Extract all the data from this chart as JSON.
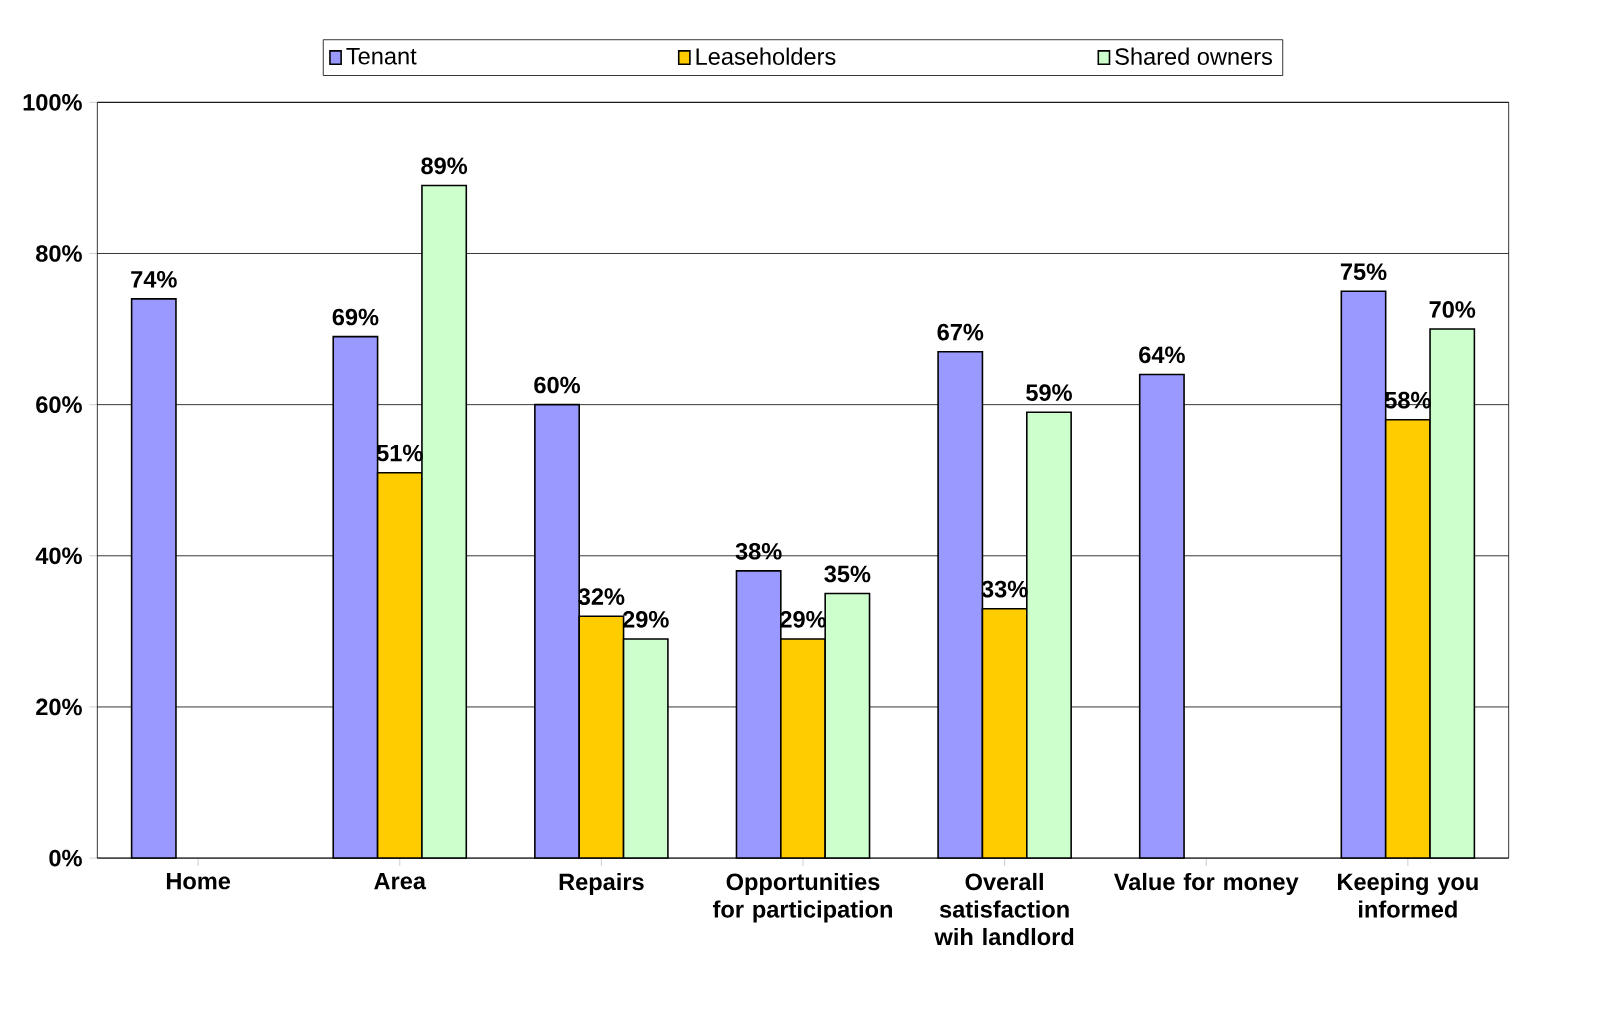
{
  "chart_data": {
    "type": "bar",
    "categories": [
      "Home",
      "Area",
      "Repairs",
      "Opportunities for participation",
      "Overall satisfaction wih landlord",
      "Value for money",
      "Keeping you informed"
    ],
    "series": [
      {
        "name": "Tenant",
        "color": "#9999ff",
        "values": [
          74,
          69,
          60,
          38,
          67,
          64,
          75
        ],
        "value_labels": [
          "74%",
          "69%",
          "60%",
          "38%",
          "67%",
          "64%",
          "75%"
        ]
      },
      {
        "name": "Leaseholders",
        "color": "#ffcc00",
        "values": [
          null,
          51,
          32,
          29,
          33,
          null,
          58
        ],
        "value_labels": [
          null,
          "51%",
          "32%",
          "29%",
          "33%",
          null,
          "58%"
        ]
      },
      {
        "name": "Shared owners",
        "color": "#ccffcc",
        "values": [
          null,
          89,
          29,
          35,
          59,
          null,
          70
        ],
        "value_labels": [
          null,
          "89%",
          "29%",
          "35%",
          "59%",
          null,
          "70%"
        ]
      }
    ],
    "ylim": [
      0,
      100
    ],
    "yticks": [
      {
        "value": 0,
        "label": "0%"
      },
      {
        "value": 20,
        "label": "20%"
      },
      {
        "value": 40,
        "label": "40%"
      },
      {
        "value": 60,
        "label": "60%"
      },
      {
        "value": 80,
        "label": "80%"
      },
      {
        "value": 100,
        "label": "100%"
      }
    ],
    "grid": "y",
    "legend": "top"
  }
}
